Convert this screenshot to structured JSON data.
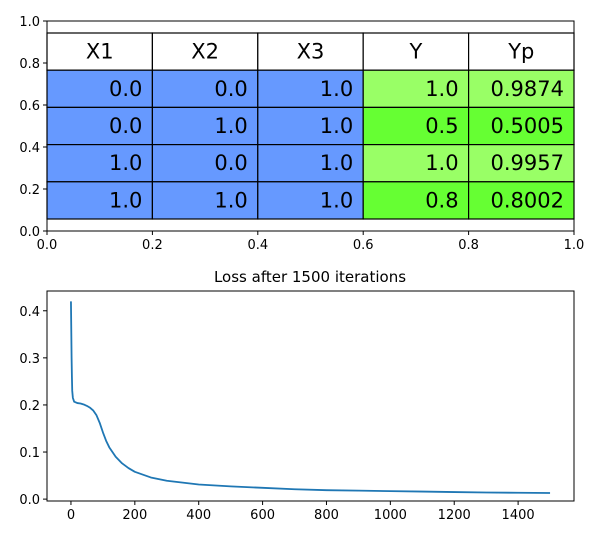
{
  "chart_data": [
    {
      "type": "table",
      "columns": [
        "X1",
        "X2",
        "X3",
        "Y",
        "Yp"
      ],
      "rows": [
        [
          "0.0",
          "0.0",
          "1.0",
          "1.0",
          "0.9874"
        ],
        [
          "0.0",
          "1.0",
          "1.0",
          "0.5",
          "0.5005"
        ],
        [
          "1.0",
          "0.0",
          "1.0",
          "1.0",
          "0.9957"
        ],
        [
          "1.0",
          "1.0",
          "1.0",
          "0.8",
          "0.8002"
        ]
      ],
      "xlim": [
        0.0,
        1.0
      ],
      "ylim": [
        0.0,
        1.0
      ],
      "x_ticks": [
        "0.0",
        "0.2",
        "0.4",
        "0.6",
        "0.8",
        "1.0"
      ],
      "y_ticks": [
        "0.0",
        "0.2",
        "0.4",
        "0.6",
        "0.8",
        "1.0"
      ],
      "colors": {
        "input_cells": "#6699ff",
        "target_cells_light": "#99ff66",
        "target_cells_dark": "#66ff33",
        "header_cells": "#ffffff"
      }
    },
    {
      "type": "line",
      "title": "Loss after 1500 iterations",
      "series": [
        {
          "color": "#1f77b4",
          "points": [
            [
              0,
              0.42
            ],
            [
              1,
              0.36
            ],
            [
              2,
              0.3
            ],
            [
              3,
              0.26
            ],
            [
              4,
              0.23
            ],
            [
              6,
              0.215
            ],
            [
              10,
              0.207
            ],
            [
              20,
              0.204
            ],
            [
              30,
              0.203
            ],
            [
              40,
              0.201
            ],
            [
              50,
              0.198
            ],
            [
              60,
              0.194
            ],
            [
              70,
              0.188
            ],
            [
              80,
              0.178
            ],
            [
              90,
              0.162
            ],
            [
              100,
              0.142
            ],
            [
              110,
              0.124
            ],
            [
              120,
              0.11
            ],
            [
              140,
              0.09
            ],
            [
              160,
              0.076
            ],
            [
              180,
              0.066
            ],
            [
              200,
              0.058
            ],
            [
              250,
              0.046
            ],
            [
              300,
              0.039
            ],
            [
              400,
              0.031
            ],
            [
              500,
              0.027
            ],
            [
              600,
              0.024
            ],
            [
              700,
              0.021
            ],
            [
              800,
              0.019
            ],
            [
              900,
              0.018
            ],
            [
              1000,
              0.017
            ],
            [
              1100,
              0.016
            ],
            [
              1200,
              0.015
            ],
            [
              1300,
              0.014
            ],
            [
              1400,
              0.0135
            ],
            [
              1500,
              0.013
            ]
          ]
        }
      ],
      "xlim": [
        -75,
        1575
      ],
      "ylim": [
        -0.004,
        0.442
      ],
      "x_ticks": [
        0,
        200,
        400,
        600,
        800,
        1000,
        1200,
        1400
      ],
      "y_ticks": [
        "0.0",
        "0.1",
        "0.2",
        "0.3",
        "0.4"
      ]
    }
  ]
}
